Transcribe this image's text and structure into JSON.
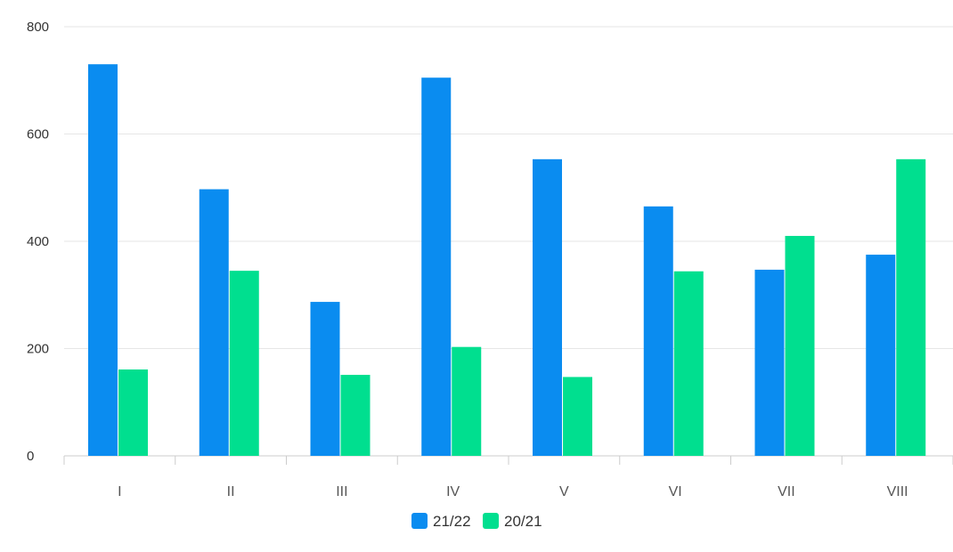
{
  "chart_data": {
    "type": "bar",
    "title": "",
    "xlabel": "",
    "ylabel": "",
    "categories": [
      "I",
      "II",
      "III",
      "IV",
      "V",
      "VI",
      "VII",
      "VIII"
    ],
    "series": [
      {
        "name": "21/22",
        "color": "#0a8cf0",
        "values": [
          730,
          497,
          287,
          705,
          553,
          465,
          347,
          375
        ]
      },
      {
        "name": "20/21",
        "color": "#00df8f",
        "values": [
          161,
          345,
          151,
          203,
          147,
          344,
          410,
          553
        ]
      }
    ],
    "ylim": [
      0,
      800
    ],
    "yticks": [
      0,
      200,
      400,
      600,
      800
    ],
    "grid": true,
    "legend": "bottom-center"
  }
}
